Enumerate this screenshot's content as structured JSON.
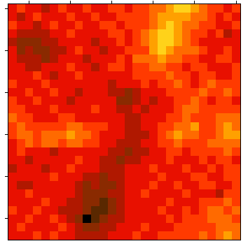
{
  "chart_data": {
    "type": "heatmap",
    "tick_labels": false,
    "xlim": [
      -0.5,
      27.5
    ],
    "ylim": [
      27.5,
      -0.5
    ],
    "xticks": [
      2,
      7,
      12,
      17,
      22,
      27
    ],
    "yticks": [
      0,
      5,
      10,
      15,
      20,
      25
    ],
    "cells": [
      [
        5,
        6,
        5,
        5,
        4,
        5,
        6,
        5,
        5,
        6,
        5,
        5,
        6,
        6,
        5,
        6,
        6,
        7,
        7,
        8,
        9,
        9,
        8,
        7,
        6,
        6,
        5,
        6
      ],
      [
        5,
        4,
        5,
        6,
        5,
        5,
        5,
        6,
        5,
        5,
        6,
        5,
        5,
        6,
        6,
        6,
        6,
        7,
        8,
        8,
        8,
        8,
        7,
        7,
        6,
        5,
        6,
        5
      ],
      [
        6,
        5,
        5,
        4,
        5,
        6,
        5,
        5,
        6,
        5,
        5,
        6,
        6,
        5,
        6,
        6,
        6,
        7,
        8,
        9,
        8,
        7,
        7,
        6,
        6,
        5,
        5,
        6
      ],
      [
        5,
        4,
        4,
        4,
        4,
        5,
        5,
        6,
        5,
        5,
        5,
        5,
        6,
        6,
        5,
        6,
        7,
        8,
        9,
        9,
        8,
        7,
        6,
        6,
        5,
        6,
        4,
        5
      ],
      [
        4,
        3,
        3,
        3,
        4,
        4,
        5,
        5,
        5,
        5,
        4,
        5,
        5,
        6,
        5,
        6,
        7,
        8,
        9,
        9,
        8,
        7,
        6,
        5,
        5,
        5,
        5,
        5
      ],
      [
        5,
        3,
        4,
        3,
        3,
        4,
        4,
        5,
        6,
        5,
        5,
        4,
        5,
        5,
        6,
        6,
        6,
        8,
        9,
        8,
        7,
        7,
        7,
        6,
        5,
        5,
        6,
        5
      ],
      [
        5,
        4,
        4,
        4,
        3,
        4,
        5,
        5,
        5,
        4,
        5,
        5,
        5,
        6,
        5,
        7,
        7,
        7,
        8,
        7,
        7,
        6,
        6,
        5,
        5,
        6,
        6,
        5
      ],
      [
        5,
        5,
        4,
        4,
        5,
        5,
        5,
        6,
        5,
        5,
        4,
        5,
        6,
        6,
        5,
        6,
        6,
        7,
        7,
        6,
        6,
        5,
        6,
        6,
        5,
        5,
        5,
        6
      ],
      [
        5,
        5,
        5,
        6,
        5,
        4,
        5,
        5,
        6,
        5,
        5,
        5,
        5,
        5,
        5,
        6,
        6,
        6,
        6,
        7,
        6,
        6,
        5,
        6,
        6,
        5,
        5,
        6
      ],
      [
        6,
        5,
        5,
        5,
        6,
        5,
        5,
        5,
        5,
        5,
        5,
        5,
        4,
        5,
        5,
        5,
        6,
        5,
        6,
        6,
        7,
        6,
        5,
        6,
        7,
        6,
        6,
        6
      ],
      [
        5,
        5,
        6,
        5,
        5,
        6,
        5,
        5,
        4,
        5,
        5,
        5,
        4,
        4,
        3,
        4,
        5,
        5,
        5,
        6,
        6,
        6,
        6,
        7,
        6,
        6,
        7,
        6
      ],
      [
        6,
        5,
        5,
        6,
        5,
        5,
        5,
        4,
        5,
        5,
        5,
        5,
        5,
        3,
        3,
        4,
        5,
        4,
        5,
        5,
        6,
        6,
        7,
        6,
        5,
        6,
        6,
        5
      ],
      [
        6,
        6,
        5,
        5,
        5,
        6,
        5,
        5,
        5,
        5,
        6,
        5,
        5,
        4,
        4,
        5,
        4,
        5,
        5,
        5,
        6,
        7,
        7,
        6,
        6,
        6,
        6,
        6
      ],
      [
        7,
        6,
        6,
        5,
        5,
        5,
        6,
        6,
        5,
        5,
        5,
        5,
        5,
        5,
        4,
        4,
        5,
        5,
        5,
        6,
        6,
        7,
        6,
        6,
        6,
        7,
        7,
        7
      ],
      [
        6,
        7,
        6,
        6,
        6,
        6,
        6,
        7,
        7,
        6,
        6,
        6,
        5,
        5,
        4,
        4,
        5,
        5,
        6,
        6,
        7,
        7,
        8,
        6,
        6,
        7,
        8,
        7
      ],
      [
        6,
        7,
        7,
        6,
        7,
        7,
        7,
        8,
        7,
        7,
        6,
        5,
        5,
        5,
        4,
        4,
        4,
        5,
        6,
        7,
        8,
        7,
        7,
        6,
        6,
        7,
        8,
        8
      ],
      [
        5,
        6,
        7,
        6,
        7,
        7,
        6,
        7,
        7,
        6,
        6,
        5,
        5,
        4,
        4,
        4,
        5,
        5,
        6,
        6,
        7,
        6,
        6,
        6,
        7,
        7,
        7,
        7
      ],
      [
        5,
        6,
        5,
        5,
        5,
        4,
        5,
        5,
        5,
        5,
        5,
        5,
        4,
        4,
        3,
        4,
        4,
        5,
        5,
        6,
        6,
        5,
        6,
        6,
        6,
        6,
        7,
        6
      ],
      [
        5,
        5,
        4,
        5,
        5,
        5,
        5,
        5,
        6,
        5,
        5,
        4,
        4,
        3,
        4,
        4,
        5,
        5,
        5,
        6,
        5,
        5,
        5,
        6,
        5,
        6,
        6,
        5
      ],
      [
        4,
        5,
        5,
        5,
        4,
        5,
        5,
        6,
        5,
        5,
        5,
        4,
        4,
        4,
        5,
        5,
        5,
        6,
        5,
        5,
        5,
        6,
        5,
        5,
        6,
        5,
        6,
        6
      ],
      [
        5,
        5,
        5,
        5,
        5,
        6,
        5,
        5,
        5,
        4,
        4,
        3,
        4,
        4,
        5,
        5,
        5,
        5,
        6,
        5,
        5,
        5,
        6,
        6,
        5,
        5,
        6,
        6
      ],
      [
        5,
        4,
        4,
        5,
        5,
        5,
        5,
        5,
        4,
        3,
        4,
        3,
        3,
        4,
        5,
        5,
        5,
        6,
        5,
        5,
        6,
        5,
        5,
        6,
        6,
        5,
        5,
        6
      ],
      [
        5,
        5,
        6,
        5,
        5,
        5,
        5,
        5,
        4,
        3,
        3,
        3,
        4,
        4,
        5,
        5,
        6,
        5,
        5,
        5,
        5,
        6,
        5,
        5,
        5,
        4,
        6,
        6
      ],
      [
        5,
        5,
        5,
        5,
        6,
        5,
        5,
        4,
        4,
        3,
        3,
        2,
        3,
        4,
        5,
        5,
        5,
        5,
        5,
        6,
        5,
        5,
        5,
        6,
        6,
        6,
        7,
        6
      ],
      [
        6,
        5,
        5,
        6,
        5,
        5,
        4,
        4,
        4,
        3,
        2,
        2,
        3,
        4,
        5,
        5,
        5,
        5,
        6,
        5,
        5,
        6,
        5,
        6,
        7,
        7,
        6,
        7
      ],
      [
        5,
        5,
        6,
        5,
        5,
        6,
        5,
        4,
        3,
        0,
        2,
        3,
        4,
        4,
        5,
        5,
        5,
        5,
        5,
        6,
        5,
        6,
        6,
        6,
        7,
        7,
        7,
        6
      ],
      [
        5,
        6,
        5,
        5,
        5,
        5,
        6,
        5,
        4,
        3,
        3,
        4,
        4,
        5,
        5,
        5,
        6,
        5,
        5,
        5,
        6,
        6,
        6,
        6,
        6,
        7,
        7,
        7
      ],
      [
        5,
        5,
        5,
        6,
        5,
        6,
        5,
        5,
        4,
        4,
        4,
        4,
        5,
        5,
        5,
        6,
        5,
        5,
        6,
        6,
        6,
        6,
        6,
        7,
        6,
        7,
        8,
        7
      ]
    ]
  }
}
